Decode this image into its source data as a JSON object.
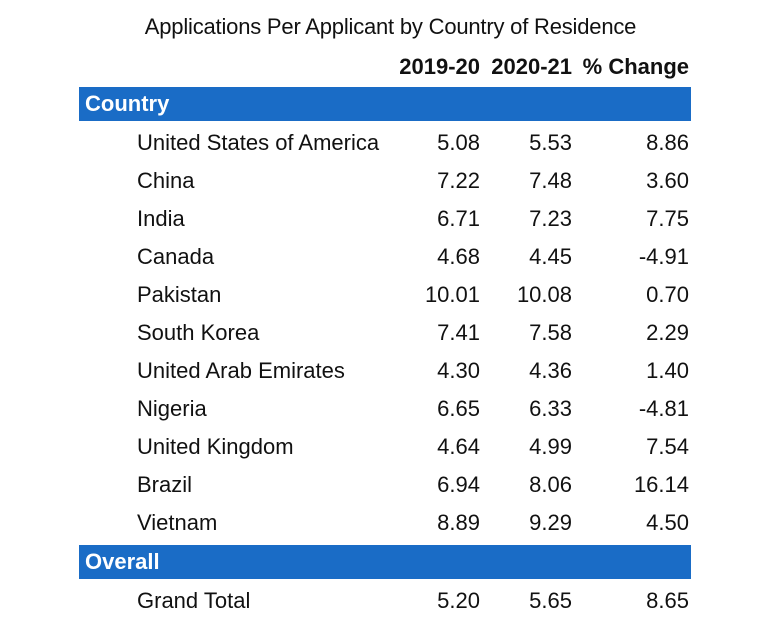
{
  "chart_data": {
    "type": "table",
    "title": "Applications Per Applicant by Country of Residence",
    "columns": [
      "2019-20",
      "2020-21",
      "% Change"
    ],
    "sections": [
      {
        "label": "Country",
        "rows": [
          {
            "name": "United States of America",
            "values": [
              "5.08",
              "5.53",
              "8.86"
            ]
          },
          {
            "name": "China",
            "values": [
              "7.22",
              "7.48",
              "3.60"
            ]
          },
          {
            "name": "India",
            "values": [
              "6.71",
              "7.23",
              "7.75"
            ]
          },
          {
            "name": "Canada",
            "values": [
              "4.68",
              "4.45",
              "-4.91"
            ]
          },
          {
            "name": "Pakistan",
            "values": [
              "10.01",
              "10.08",
              "0.70"
            ]
          },
          {
            "name": "South Korea",
            "values": [
              "7.41",
              "7.58",
              "2.29"
            ]
          },
          {
            "name": "United Arab Emirates",
            "values": [
              "4.30",
              "4.36",
              "1.40"
            ]
          },
          {
            "name": "Nigeria",
            "values": [
              "6.65",
              "6.33",
              "-4.81"
            ]
          },
          {
            "name": "United Kingdom",
            "values": [
              "4.64",
              "4.99",
              "7.54"
            ]
          },
          {
            "name": "Brazil",
            "values": [
              "6.94",
              "8.06",
              "16.14"
            ]
          },
          {
            "name": "Vietnam",
            "values": [
              "8.89",
              "9.29",
              "4.50"
            ]
          }
        ]
      },
      {
        "label": "Overall",
        "rows": [
          {
            "name": "Grand Total",
            "values": [
              "5.20",
              "5.65",
              "8.65"
            ]
          }
        ]
      }
    ],
    "colors": {
      "section_bar": "#1a6cc6",
      "section_text": "#ffffff"
    }
  }
}
